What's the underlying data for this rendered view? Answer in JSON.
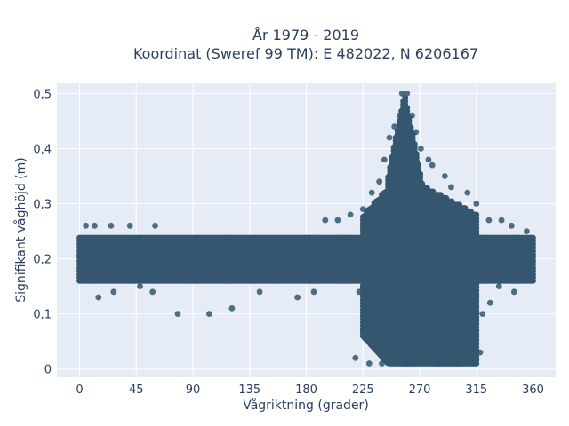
{
  "chart_data": {
    "type": "scatter",
    "title_lines": [
      "År 1979 - 2019",
      "Koordinat (Sweref 99 TM): E 482022, N 6206167"
    ],
    "xlabel": "Vågriktning (grader)",
    "ylabel": "Signifikant våghöjd (m)",
    "xlim": [
      -18,
      378
    ],
    "ylim": [
      -0.015,
      0.52
    ],
    "x_ticks": [
      0,
      45,
      90,
      135,
      180,
      225,
      270,
      315,
      360
    ],
    "x_tick_labels": [
      "0",
      "45",
      "90",
      "135",
      "180",
      "225",
      "270",
      "315",
      "360"
    ],
    "y_ticks": [
      0,
      0.1,
      0.2,
      0.3,
      0.4,
      0.5
    ],
    "y_tick_labels": [
      "0",
      "0,1",
      "0,2",
      "0,3",
      "0,4",
      "0,5"
    ],
    "grid": true,
    "colors": {
      "marker": "#34566e",
      "plot_bg": "#e5ecf6",
      "grid": "#ffffff",
      "text": "#2a3f5f"
    },
    "density_regions": [
      {
        "x_range": [
          0,
          360
        ],
        "y_range": [
          0.16,
          0.24
        ]
      },
      {
        "x_range": [
          225,
          315
        ],
        "y_range": [
          0.01,
          0.33
        ]
      },
      {
        "x_range": [
          245,
          275
        ],
        "y_range": [
          0.33,
          0.5
        ]
      }
    ],
    "sample_points": [
      {
        "x": 5,
        "y": 0.26
      },
      {
        "x": 12,
        "y": 0.26
      },
      {
        "x": 25,
        "y": 0.26
      },
      {
        "x": 40,
        "y": 0.26
      },
      {
        "x": 60,
        "y": 0.26
      },
      {
        "x": 15,
        "y": 0.13
      },
      {
        "x": 27,
        "y": 0.14
      },
      {
        "x": 48,
        "y": 0.15
      },
      {
        "x": 58,
        "y": 0.14
      },
      {
        "x": 78,
        "y": 0.1
      },
      {
        "x": 103,
        "y": 0.1
      },
      {
        "x": 121,
        "y": 0.11
      },
      {
        "x": 143,
        "y": 0.14
      },
      {
        "x": 173,
        "y": 0.13
      },
      {
        "x": 186,
        "y": 0.14
      },
      {
        "x": 195,
        "y": 0.27
      },
      {
        "x": 205,
        "y": 0.27
      },
      {
        "x": 215,
        "y": 0.28
      },
      {
        "x": 222,
        "y": 0.14
      },
      {
        "x": 219,
        "y": 0.02
      },
      {
        "x": 225,
        "y": 0.07
      },
      {
        "x": 230,
        "y": 0.01
      },
      {
        "x": 240,
        "y": 0.01
      },
      {
        "x": 260,
        "y": 0.01
      },
      {
        "x": 285,
        "y": 0.01
      },
      {
        "x": 300,
        "y": 0.01
      },
      {
        "x": 310,
        "y": 0.03
      },
      {
        "x": 318,
        "y": 0.03
      },
      {
        "x": 320,
        "y": 0.1
      },
      {
        "x": 315,
        "y": 0.3
      },
      {
        "x": 308,
        "y": 0.32
      },
      {
        "x": 295,
        "y": 0.33
      },
      {
        "x": 290,
        "y": 0.35
      },
      {
        "x": 280,
        "y": 0.37
      },
      {
        "x": 325,
        "y": 0.27
      },
      {
        "x": 335,
        "y": 0.27
      },
      {
        "x": 343,
        "y": 0.26
      },
      {
        "x": 355,
        "y": 0.25
      },
      {
        "x": 345,
        "y": 0.14
      },
      {
        "x": 333,
        "y": 0.15
      },
      {
        "x": 326,
        "y": 0.12
      },
      {
        "x": 225,
        "y": 0.29
      },
      {
        "x": 232,
        "y": 0.32
      },
      {
        "x": 238,
        "y": 0.34
      },
      {
        "x": 242,
        "y": 0.38
      },
      {
        "x": 246,
        "y": 0.42
      },
      {
        "x": 250,
        "y": 0.44
      },
      {
        "x": 254,
        "y": 0.46
      },
      {
        "x": 256,
        "y": 0.5
      },
      {
        "x": 260,
        "y": 0.5
      },
      {
        "x": 264,
        "y": 0.46
      },
      {
        "x": 267,
        "y": 0.43
      },
      {
        "x": 271,
        "y": 0.4
      },
      {
        "x": 277,
        "y": 0.38
      }
    ]
  }
}
